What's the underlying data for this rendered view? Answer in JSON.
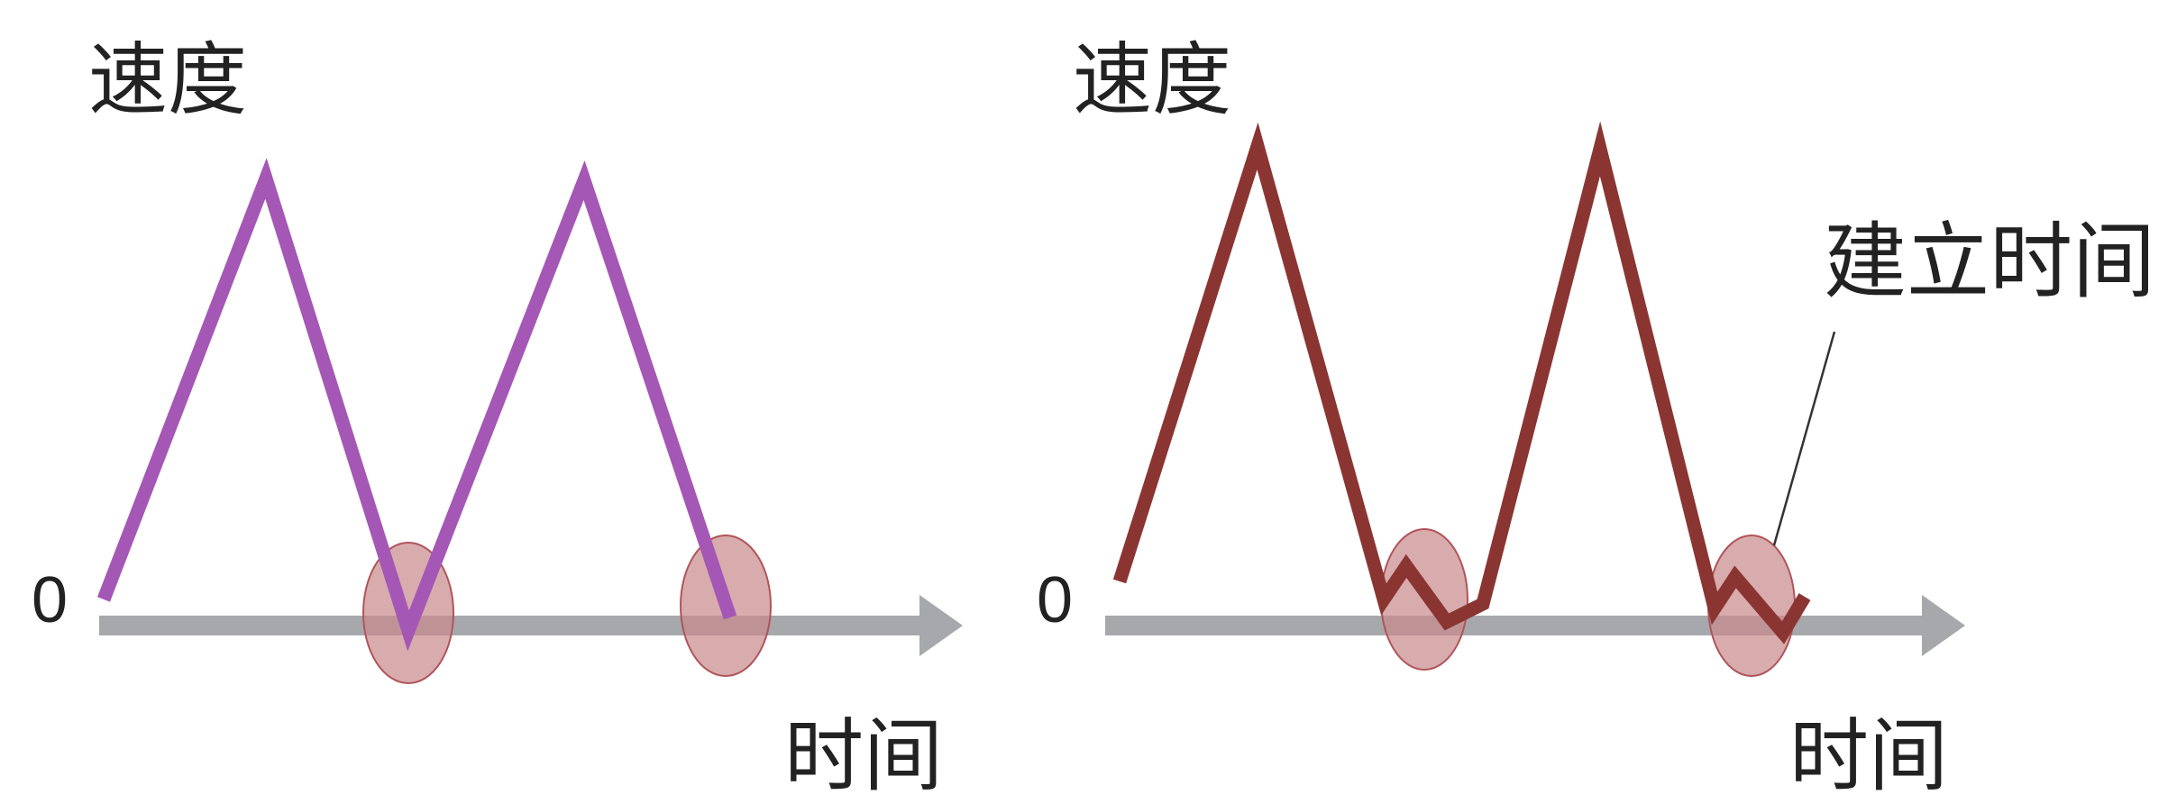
{
  "panels": [
    {
      "y_label": "速度",
      "x_label": "时间",
      "origin_label": "0",
      "line_color": "#a457b5"
    },
    {
      "y_label": "速度",
      "x_label": "时间",
      "origin_label": "0",
      "line_color": "#8b3532",
      "annotation": "建立时间"
    }
  ],
  "colors": {
    "axis": "#a6a8ab",
    "highlight_fill": "#c98b8d",
    "highlight_stroke": "#b0555a"
  }
}
